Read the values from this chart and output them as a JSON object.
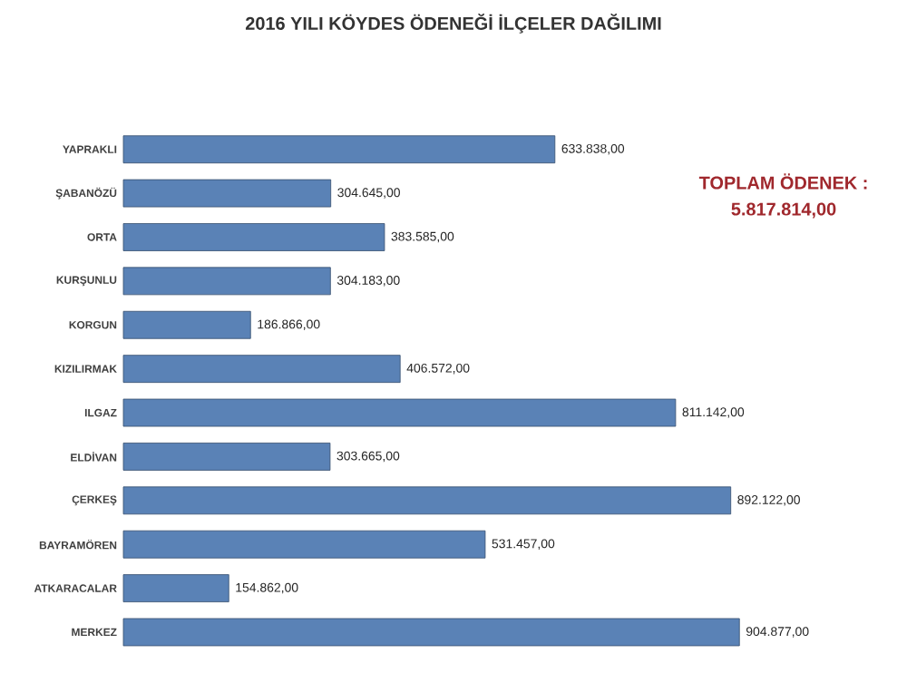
{
  "chart_data": {
    "type": "bar",
    "orientation": "horizontal",
    "title": "2016 YILI KÖYDES ÖDENEĞİ İLÇELER DAĞILIMI",
    "categories": [
      "YAPRAKLI",
      "ŞABANÖZÜ",
      "ORTA",
      "KURŞUNLU",
      "KORGUN",
      "KIZILIRMAK",
      "ILGAZ",
      "ELDİVAN",
      "ÇERKEŞ",
      "BAYRAMÖREN",
      "ATKARACALAR",
      "MERKEZ"
    ],
    "values": [
      633838,
      304645,
      383585,
      304183,
      186866,
      406572,
      811142,
      303665,
      892122,
      531457,
      154862,
      904877
    ],
    "value_labels": [
      "633.838,00",
      "304.645,00",
      "383.585,00",
      "304.183,00",
      "186.866,00",
      "406.572,00",
      "811.142,00",
      "303.665,00",
      "892.122,00",
      "531.457,00",
      "154.862,00",
      "904.877,00"
    ],
    "color": "#5a82b6",
    "annotations": [
      "TOPLAM ÖDENEK :",
      "5.817.814,00"
    ]
  }
}
